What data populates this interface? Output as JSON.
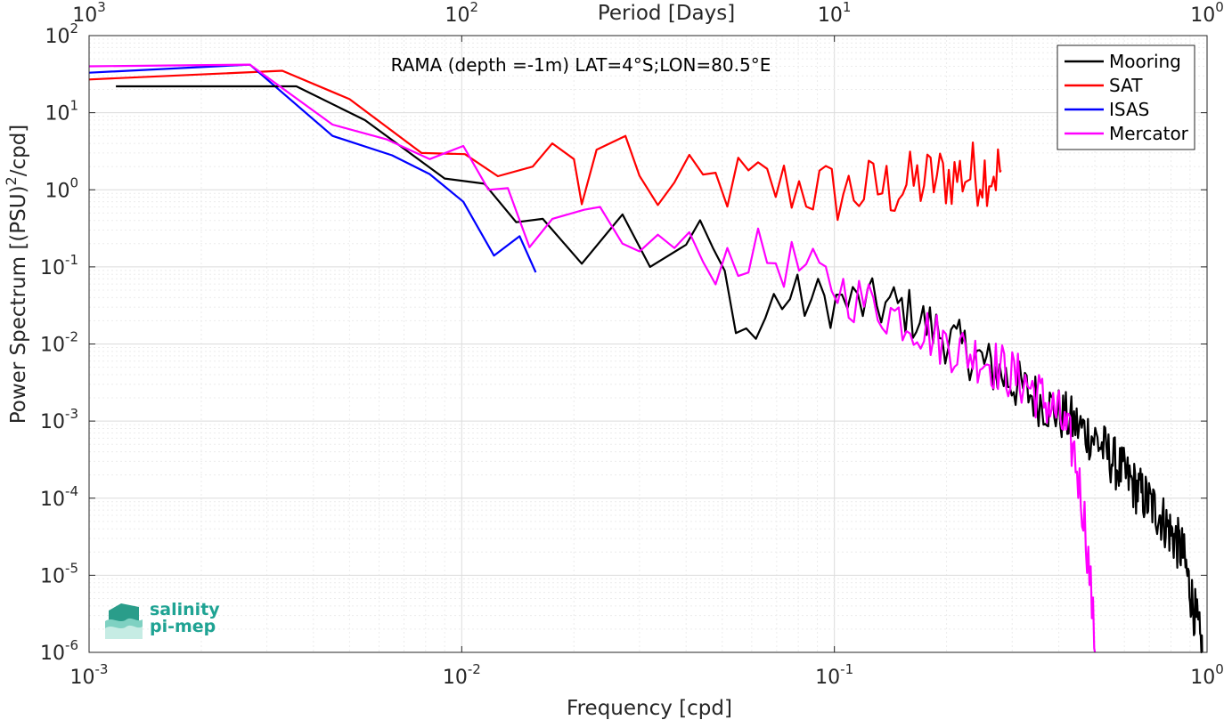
{
  "chart_data": {
    "type": "line",
    "title": "",
    "annotation": "RAMA (depth =-1m) LAT=4°S;LON=80.5°E",
    "xlabel": "Frequency [cpd]",
    "ylabel": "Power Spectrum [(PSU)²/cpd]",
    "top_xlabel": "Period [Days]",
    "x_scale": "log",
    "y_scale": "log",
    "xlim": [
      0.001,
      1
    ],
    "ylim": [
      1e-06,
      100
    ],
    "grid": true,
    "legend_position": "top-right",
    "x_ticks": [
      0.001,
      0.01,
      0.1,
      1
    ],
    "x_tick_labels": [
      {
        "b": "10",
        "e": "-3"
      },
      {
        "b": "10",
        "e": "-2"
      },
      {
        "b": "10",
        "e": "-1"
      },
      {
        "b": "10",
        "e": "0"
      }
    ],
    "top_ticks": [
      0.001,
      0.01,
      0.1,
      1
    ],
    "top_tick_labels": [
      {
        "b": "10",
        "e": "3"
      },
      {
        "b": "10",
        "e": "2"
      },
      {
        "b": "10",
        "e": "1"
      },
      {
        "b": "10",
        "e": "0"
      }
    ],
    "y_ticks": [
      1e-06,
      1e-05,
      0.0001,
      0.001,
      0.01,
      0.1,
      1,
      10,
      100
    ],
    "y_tick_labels": [
      {
        "b": "10",
        "e": "-6"
      },
      {
        "b": "10",
        "e": "-5"
      },
      {
        "b": "10",
        "e": "-4"
      },
      {
        "b": "10",
        "e": "-3"
      },
      {
        "b": "10",
        "e": "-2"
      },
      {
        "b": "10",
        "e": "-1"
      },
      {
        "b": "10",
        "e": "0"
      },
      {
        "b": "10",
        "e": "1"
      },
      {
        "b": "10",
        "e": "2"
      }
    ],
    "series": [
      {
        "name": "Mooring",
        "color": "#000000",
        "trend": [
          [
            0.00118,
            22
          ],
          [
            0.0036,
            22
          ],
          [
            0.0055,
            8
          ],
          [
            0.009,
            1.4
          ],
          [
            0.0115,
            1.2
          ],
          [
            0.014,
            0.38
          ],
          [
            0.0165,
            0.42
          ],
          [
            0.021,
            0.11
          ],
          [
            0.027,
            0.48
          ],
          [
            0.032,
            0.1
          ],
          [
            0.045,
            0.25
          ],
          [
            0.06,
            0.01
          ],
          [
            0.07,
            0.04
          ],
          [
            0.1,
            0.035
          ],
          [
            0.15,
            0.03
          ],
          [
            0.2,
            0.012
          ],
          [
            0.28,
            0.004
          ],
          [
            0.38,
            0.0015
          ],
          [
            0.5,
            0.0006
          ],
          [
            0.6,
            0.0002
          ],
          [
            0.75,
            6e-05
          ],
          [
            0.86,
            2e-05
          ],
          [
            0.93,
            3e-06
          ],
          [
            0.97,
            1e-06
          ]
        ],
        "noise_from": 0.04,
        "noise_amp": 0.35
      },
      {
        "name": "SAT",
        "color": "#ff0000",
        "trend": [
          [
            0.001,
            27
          ],
          [
            0.0033,
            35
          ],
          [
            0.005,
            15
          ],
          [
            0.0078,
            3
          ],
          [
            0.0102,
            2.9
          ],
          [
            0.0125,
            1.5
          ],
          [
            0.0155,
            2
          ],
          [
            0.0175,
            4
          ],
          [
            0.02,
            2.5
          ],
          [
            0.021,
            0.65
          ],
          [
            0.023,
            3.3
          ],
          [
            0.0275,
            5
          ],
          [
            0.03,
            1.1
          ],
          [
            0.035,
            0.9
          ],
          [
            0.04,
            1
          ],
          [
            0.05,
            1.2
          ],
          [
            0.08,
            1.1
          ],
          [
            0.1,
            0.9
          ],
          [
            0.15,
            1.1
          ],
          [
            0.2,
            1.5
          ],
          [
            0.28,
            1.8
          ]
        ],
        "noise_from": 0.03,
        "noise_amp": 0.45
      },
      {
        "name": "ISAS",
        "color": "#0000ff",
        "trend": [
          [
            0.001,
            33
          ],
          [
            0.0027,
            42
          ],
          [
            0.0045,
            5
          ],
          [
            0.0065,
            2.8
          ],
          [
            0.0082,
            1.6
          ],
          [
            0.0101,
            0.7
          ],
          [
            0.0122,
            0.14
          ],
          [
            0.0143,
            0.25
          ],
          [
            0.0158,
            0.085
          ]
        ],
        "noise_from": 1,
        "noise_amp": 0
      },
      {
        "name": "Mercator",
        "color": "#ff00ff",
        "trend": [
          [
            0.001,
            40
          ],
          [
            0.0027,
            42
          ],
          [
            0.0045,
            7
          ],
          [
            0.0063,
            4.5
          ],
          [
            0.0082,
            2.5
          ],
          [
            0.0101,
            3.7
          ],
          [
            0.0118,
            1
          ],
          [
            0.0133,
            1.05
          ],
          [
            0.0152,
            0.18
          ],
          [
            0.0175,
            0.42
          ],
          [
            0.0213,
            0.55
          ],
          [
            0.0235,
            0.6
          ],
          [
            0.027,
            0.2
          ],
          [
            0.035,
            0.2
          ],
          [
            0.045,
            0.12
          ],
          [
            0.06,
            0.15
          ],
          [
            0.08,
            0.1
          ],
          [
            0.12,
            0.035
          ],
          [
            0.16,
            0.02
          ],
          [
            0.2,
            0.01
          ],
          [
            0.26,
            0.006
          ],
          [
            0.33,
            0.003
          ],
          [
            0.4,
            0.0012
          ],
          [
            0.44,
            0.0004
          ],
          [
            0.47,
            5e-05
          ],
          [
            0.49,
            5e-06
          ],
          [
            0.5,
            1e-06
          ]
        ],
        "noise_from": 0.03,
        "noise_amp": 0.35
      }
    ]
  },
  "logo": {
    "line1": "salinity",
    "line2": "pi-mep",
    "color": "#1fa393"
  }
}
